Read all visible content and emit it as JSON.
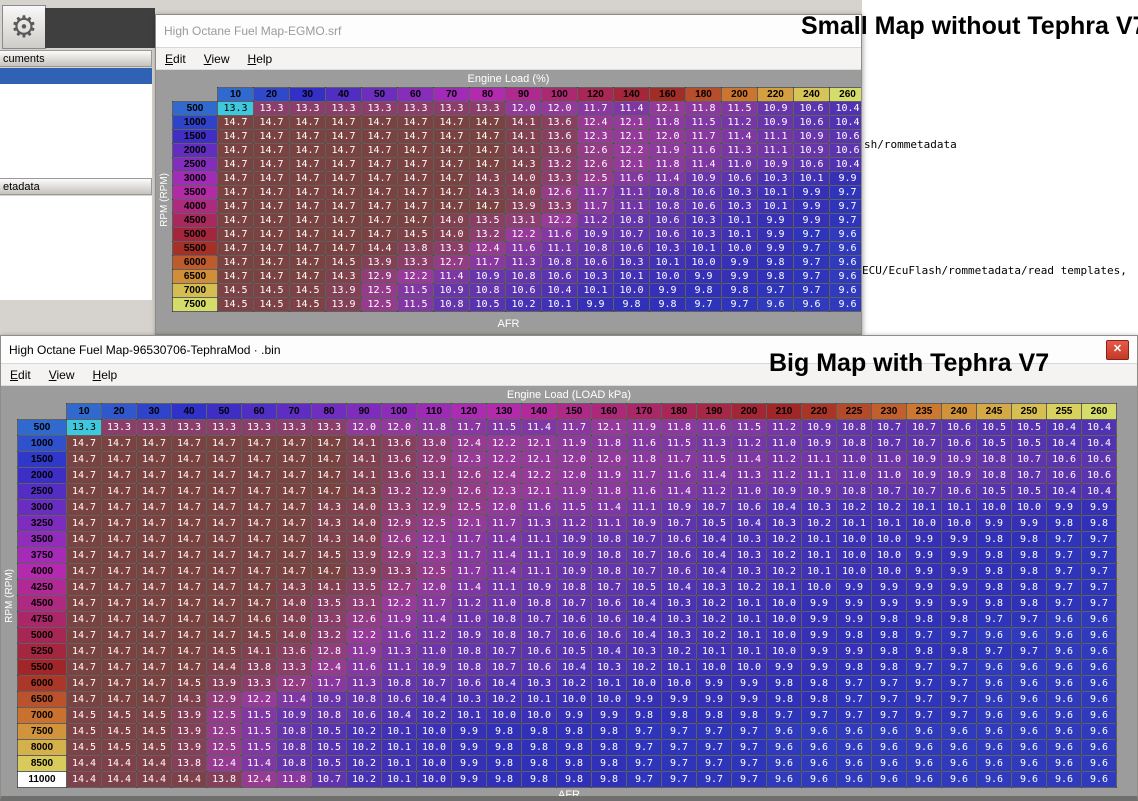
{
  "annotations": {
    "small": "Small Map without Tephra V7",
    "big": "Big Map with Tephra V7"
  },
  "icons": {
    "gear": "⚙",
    "close": "✕"
  },
  "menu": {
    "items": [
      "Edit",
      "View",
      "Help"
    ]
  },
  "background": {
    "pane1_header": "cuments",
    "pane2_header": "etadata",
    "console_line1": "sh/rommetadata",
    "console_line2": "ECU/EcuFlash/rommetadata/read templates,"
  },
  "small_map": {
    "title": "High Octane Fuel Map-EGMO.srf",
    "load_axis_label": "Engine Load (%)",
    "rpm_axis_label": "RPM (RPM)",
    "value_label": "AFR",
    "min": 9.6,
    "max": 14.7,
    "selected": {
      "row": 0,
      "col": 0
    },
    "loads": [
      10,
      20,
      30,
      40,
      50,
      60,
      70,
      80,
      90,
      100,
      120,
      140,
      160,
      180,
      200,
      220,
      240,
      260
    ],
    "rpms": [
      500,
      1000,
      1500,
      2000,
      2500,
      3000,
      3500,
      4000,
      4500,
      5000,
      5500,
      6000,
      6500,
      7000,
      7500
    ],
    "grid": [
      [
        13.3,
        13.3,
        13.3,
        13.3,
        13.3,
        13.3,
        13.3,
        13.3,
        12.0,
        12.0,
        11.7,
        11.4,
        12.1,
        11.8,
        11.5,
        10.9,
        10.6,
        10.4
      ],
      [
        14.7,
        14.7,
        14.7,
        14.7,
        14.7,
        14.7,
        14.7,
        14.7,
        14.1,
        13.6,
        12.4,
        12.1,
        11.8,
        11.5,
        11.2,
        10.9,
        10.6,
        10.4
      ],
      [
        14.7,
        14.7,
        14.7,
        14.7,
        14.7,
        14.7,
        14.7,
        14.7,
        14.1,
        13.6,
        12.3,
        12.1,
        12.0,
        11.7,
        11.4,
        11.1,
        10.9,
        10.6
      ],
      [
        14.7,
        14.7,
        14.7,
        14.7,
        14.7,
        14.7,
        14.7,
        14.7,
        14.1,
        13.6,
        12.6,
        12.2,
        11.9,
        11.6,
        11.3,
        11.1,
        10.9,
        10.6
      ],
      [
        14.7,
        14.7,
        14.7,
        14.7,
        14.7,
        14.7,
        14.7,
        14.7,
        14.3,
        13.2,
        12.6,
        12.1,
        11.8,
        11.4,
        11.0,
        10.9,
        10.6,
        10.4
      ],
      [
        14.7,
        14.7,
        14.7,
        14.7,
        14.7,
        14.7,
        14.7,
        14.3,
        14.0,
        13.3,
        12.5,
        11.6,
        11.4,
        10.9,
        10.6,
        10.3,
        10.1,
        9.9
      ],
      [
        14.7,
        14.7,
        14.7,
        14.7,
        14.7,
        14.7,
        14.7,
        14.3,
        14.0,
        12.6,
        11.7,
        11.1,
        10.8,
        10.6,
        10.3,
        10.1,
        9.9,
        9.7
      ],
      [
        14.7,
        14.7,
        14.7,
        14.7,
        14.7,
        14.7,
        14.7,
        14.7,
        13.9,
        13.3,
        11.7,
        11.1,
        10.8,
        10.6,
        10.3,
        10.1,
        9.9,
        9.7
      ],
      [
        14.7,
        14.7,
        14.7,
        14.7,
        14.7,
        14.7,
        14.0,
        13.5,
        13.1,
        12.2,
        11.2,
        10.8,
        10.6,
        10.3,
        10.1,
        9.9,
        9.9,
        9.7
      ],
      [
        14.7,
        14.7,
        14.7,
        14.7,
        14.7,
        14.5,
        14.0,
        13.2,
        12.2,
        11.6,
        10.9,
        10.7,
        10.6,
        10.3,
        10.1,
        9.9,
        9.7,
        9.6
      ],
      [
        14.7,
        14.7,
        14.7,
        14.7,
        14.4,
        13.8,
        13.3,
        12.4,
        11.6,
        11.1,
        10.8,
        10.6,
        10.3,
        10.1,
        10.0,
        9.9,
        9.7,
        9.6
      ],
      [
        14.7,
        14.7,
        14.7,
        14.5,
        13.9,
        13.3,
        12.7,
        11.7,
        11.3,
        10.8,
        10.6,
        10.3,
        10.1,
        10.0,
        9.9,
        9.8,
        9.7,
        9.6
      ],
      [
        14.7,
        14.7,
        14.7,
        14.3,
        12.9,
        12.2,
        11.4,
        10.9,
        10.8,
        10.6,
        10.3,
        10.1,
        10.0,
        9.9,
        9.9,
        9.8,
        9.7,
        9.6
      ],
      [
        14.5,
        14.5,
        14.5,
        13.9,
        12.5,
        11.5,
        10.9,
        10.8,
        10.6,
        10.4,
        10.1,
        10.0,
        9.9,
        9.8,
        9.8,
        9.7,
        9.7,
        9.6
      ],
      [
        14.5,
        14.5,
        14.5,
        13.9,
        12.5,
        11.5,
        10.8,
        10.5,
        10.2,
        10.1,
        9.9,
        9.8,
        9.8,
        9.7,
        9.7,
        9.6,
        9.6,
        9.6
      ]
    ]
  },
  "big_map": {
    "title": "High Octane Fuel Map-96530706-TephraMod · .bin",
    "load_axis_label": "Engine Load (LOAD kPa)",
    "rpm_axis_label": "RPM (RPM)",
    "value_label": "AFR",
    "min": 9.6,
    "max": 14.7,
    "selected": {
      "row": 0,
      "col": 0
    },
    "white_rpm_rows": [
      22
    ],
    "loads": [
      10,
      20,
      30,
      40,
      50,
      60,
      70,
      80,
      90,
      100,
      110,
      120,
      130,
      140,
      150,
      160,
      170,
      180,
      190,
      200,
      210,
      220,
      225,
      230,
      235,
      240,
      245,
      250,
      255,
      260
    ],
    "rpms": [
      500,
      1000,
      1500,
      2000,
      2500,
      3000,
      3250,
      3500,
      3750,
      4000,
      4250,
      4500,
      4750,
      5000,
      5250,
      5500,
      6000,
      6500,
      7000,
      7500,
      8000,
      8500,
      11000
    ],
    "grid": [
      [
        13.3,
        13.3,
        13.3,
        13.3,
        13.3,
        13.3,
        13.3,
        13.3,
        12.0,
        12.0,
        11.8,
        11.7,
        11.5,
        11.4,
        11.7,
        12.1,
        11.9,
        11.8,
        11.6,
        11.5,
        11.2,
        10.9,
        10.8,
        10.7,
        10.7,
        10.6,
        10.5,
        10.5,
        10.4,
        10.4
      ],
      [
        14.7,
        14.7,
        14.7,
        14.7,
        14.7,
        14.7,
        14.7,
        14.7,
        14.1,
        13.6,
        13.0,
        12.4,
        12.2,
        12.1,
        11.9,
        11.8,
        11.6,
        11.5,
        11.3,
        11.2,
        11.0,
        10.9,
        10.8,
        10.7,
        10.7,
        10.6,
        10.5,
        10.5,
        10.4,
        10.4
      ],
      [
        14.7,
        14.7,
        14.7,
        14.7,
        14.7,
        14.7,
        14.7,
        14.7,
        14.1,
        13.6,
        12.9,
        12.3,
        12.2,
        12.1,
        12.0,
        12.0,
        11.8,
        11.7,
        11.5,
        11.4,
        11.2,
        11.1,
        11.0,
        11.0,
        10.9,
        10.9,
        10.8,
        10.7,
        10.6,
        10.6
      ],
      [
        14.7,
        14.7,
        14.7,
        14.7,
        14.7,
        14.7,
        14.7,
        14.7,
        14.1,
        13.6,
        13.1,
        12.6,
        12.4,
        12.2,
        12.0,
        11.9,
        11.7,
        11.6,
        11.4,
        11.3,
        11.2,
        11.1,
        11.0,
        11.0,
        10.9,
        10.9,
        10.8,
        10.7,
        10.6,
        10.6
      ],
      [
        14.7,
        14.7,
        14.7,
        14.7,
        14.7,
        14.7,
        14.7,
        14.7,
        14.3,
        13.2,
        12.9,
        12.6,
        12.3,
        12.1,
        11.9,
        11.8,
        11.6,
        11.4,
        11.2,
        11.0,
        10.9,
        10.9,
        10.8,
        10.7,
        10.7,
        10.6,
        10.5,
        10.5,
        10.4,
        10.4
      ],
      [
        14.7,
        14.7,
        14.7,
        14.7,
        14.7,
        14.7,
        14.7,
        14.3,
        14.0,
        13.3,
        12.9,
        12.5,
        12.0,
        11.6,
        11.5,
        11.4,
        11.1,
        10.9,
        10.7,
        10.6,
        10.4,
        10.3,
        10.2,
        10.2,
        10.1,
        10.1,
        10.0,
        10.0,
        9.9,
        9.9
      ],
      [
        14.7,
        14.7,
        14.7,
        14.7,
        14.7,
        14.7,
        14.7,
        14.3,
        14.0,
        12.9,
        12.5,
        12.1,
        11.7,
        11.3,
        11.2,
        11.1,
        10.9,
        10.7,
        10.5,
        10.4,
        10.3,
        10.2,
        10.1,
        10.1,
        10.0,
        10.0,
        9.9,
        9.9,
        9.8,
        9.8
      ],
      [
        14.7,
        14.7,
        14.7,
        14.7,
        14.7,
        14.7,
        14.7,
        14.3,
        14.0,
        12.6,
        12.1,
        11.7,
        11.4,
        11.1,
        10.9,
        10.8,
        10.7,
        10.6,
        10.4,
        10.3,
        10.2,
        10.1,
        10.0,
        10.0,
        9.9,
        9.9,
        9.8,
        9.8,
        9.7,
        9.7
      ],
      [
        14.7,
        14.7,
        14.7,
        14.7,
        14.7,
        14.7,
        14.7,
        14.5,
        13.9,
        12.9,
        12.3,
        11.7,
        11.4,
        11.1,
        10.9,
        10.8,
        10.7,
        10.6,
        10.4,
        10.3,
        10.2,
        10.1,
        10.0,
        10.0,
        9.9,
        9.9,
        9.8,
        9.8,
        9.7,
        9.7
      ],
      [
        14.7,
        14.7,
        14.7,
        14.7,
        14.7,
        14.7,
        14.7,
        14.7,
        13.9,
        13.3,
        12.5,
        11.7,
        11.4,
        11.1,
        10.9,
        10.8,
        10.7,
        10.6,
        10.4,
        10.3,
        10.2,
        10.1,
        10.0,
        10.0,
        9.9,
        9.9,
        9.8,
        9.8,
        9.7,
        9.7
      ],
      [
        14.7,
        14.7,
        14.7,
        14.7,
        14.7,
        14.7,
        14.3,
        14.1,
        13.5,
        12.7,
        12.0,
        11.4,
        11.1,
        10.9,
        10.8,
        10.7,
        10.5,
        10.4,
        10.3,
        10.2,
        10.1,
        10.0,
        9.9,
        9.9,
        9.9,
        9.9,
        9.8,
        9.8,
        9.7,
        9.7
      ],
      [
        14.7,
        14.7,
        14.7,
        14.7,
        14.7,
        14.7,
        14.0,
        13.5,
        13.1,
        12.2,
        11.7,
        11.2,
        11.0,
        10.8,
        10.7,
        10.6,
        10.4,
        10.3,
        10.2,
        10.1,
        10.0,
        9.9,
        9.9,
        9.9,
        9.9,
        9.9,
        9.8,
        9.8,
        9.7,
        9.7
      ],
      [
        14.7,
        14.7,
        14.7,
        14.7,
        14.7,
        14.6,
        14.0,
        13.3,
        12.6,
        11.9,
        11.4,
        11.0,
        10.8,
        10.7,
        10.6,
        10.6,
        10.4,
        10.3,
        10.2,
        10.1,
        10.0,
        9.9,
        9.9,
        9.8,
        9.8,
        9.8,
        9.7,
        9.7,
        9.6,
        9.6
      ],
      [
        14.7,
        14.7,
        14.7,
        14.7,
        14.7,
        14.5,
        14.0,
        13.2,
        12.2,
        11.6,
        11.2,
        10.9,
        10.8,
        10.7,
        10.6,
        10.6,
        10.4,
        10.3,
        10.2,
        10.1,
        10.0,
        9.9,
        9.8,
        9.8,
        9.7,
        9.7,
        9.6,
        9.6,
        9.6,
        9.6
      ],
      [
        14.7,
        14.7,
        14.7,
        14.7,
        14.5,
        14.1,
        13.6,
        12.8,
        11.9,
        11.3,
        11.0,
        10.8,
        10.7,
        10.6,
        10.5,
        10.4,
        10.3,
        10.2,
        10.1,
        10.1,
        10.0,
        9.9,
        9.9,
        9.8,
        9.8,
        9.8,
        9.7,
        9.7,
        9.6,
        9.6
      ],
      [
        14.7,
        14.7,
        14.7,
        14.7,
        14.4,
        13.8,
        13.3,
        12.4,
        11.6,
        11.1,
        10.9,
        10.8,
        10.7,
        10.6,
        10.4,
        10.3,
        10.2,
        10.1,
        10.0,
        10.0,
        9.9,
        9.9,
        9.8,
        9.8,
        9.7,
        9.7,
        9.6,
        9.6,
        9.6,
        9.6
      ],
      [
        14.7,
        14.7,
        14.7,
        14.5,
        13.9,
        13.3,
        12.7,
        11.7,
        11.3,
        10.8,
        10.7,
        10.6,
        10.4,
        10.3,
        10.2,
        10.1,
        10.0,
        10.0,
        9.9,
        9.9,
        9.8,
        9.8,
        9.7,
        9.7,
        9.7,
        9.7,
        9.6,
        9.6,
        9.6,
        9.6
      ],
      [
        14.7,
        14.7,
        14.7,
        14.3,
        12.9,
        12.2,
        11.4,
        10.9,
        10.8,
        10.6,
        10.4,
        10.3,
        10.2,
        10.1,
        10.0,
        10.0,
        9.9,
        9.9,
        9.9,
        9.9,
        9.8,
        9.8,
        9.7,
        9.7,
        9.7,
        9.7,
        9.6,
        9.6,
        9.6,
        9.6
      ],
      [
        14.5,
        14.5,
        14.5,
        13.9,
        12.5,
        11.5,
        10.9,
        10.8,
        10.6,
        10.4,
        10.2,
        10.1,
        10.0,
        10.0,
        9.9,
        9.9,
        9.8,
        9.8,
        9.8,
        9.8,
        9.7,
        9.7,
        9.7,
        9.7,
        9.7,
        9.7,
        9.6,
        9.6,
        9.6,
        9.6
      ],
      [
        14.5,
        14.5,
        14.5,
        13.9,
        12.5,
        11.5,
        10.8,
        10.5,
        10.2,
        10.1,
        10.0,
        9.9,
        9.8,
        9.8,
        9.8,
        9.8,
        9.7,
        9.7,
        9.7,
        9.7,
        9.6,
        9.6,
        9.6,
        9.6,
        9.6,
        9.6,
        9.6,
        9.6,
        9.6,
        9.6
      ],
      [
        14.5,
        14.5,
        14.5,
        13.9,
        12.5,
        11.5,
        10.8,
        10.5,
        10.2,
        10.1,
        10.0,
        9.9,
        9.8,
        9.8,
        9.8,
        9.8,
        9.7,
        9.7,
        9.7,
        9.7,
        9.6,
        9.6,
        9.6,
        9.6,
        9.6,
        9.6,
        9.6,
        9.6,
        9.6,
        9.6
      ],
      [
        14.4,
        14.4,
        14.4,
        13.8,
        12.4,
        11.4,
        10.8,
        10.5,
        10.2,
        10.1,
        10.0,
        9.9,
        9.8,
        9.8,
        9.8,
        9.8,
        9.7,
        9.7,
        9.7,
        9.7,
        9.6,
        9.6,
        9.6,
        9.6,
        9.6,
        9.6,
        9.6,
        9.6,
        9.6,
        9.6
      ],
      [
        14.4,
        14.4,
        14.4,
        14.4,
        13.8,
        12.4,
        11.8,
        10.7,
        10.2,
        10.1,
        10.0,
        9.9,
        9.8,
        9.8,
        9.8,
        9.8,
        9.7,
        9.7,
        9.7,
        9.7,
        9.6,
        9.6,
        9.6,
        9.6,
        9.6,
        9.6,
        9.6,
        9.6,
        9.6,
        9.6
      ]
    ]
  }
}
